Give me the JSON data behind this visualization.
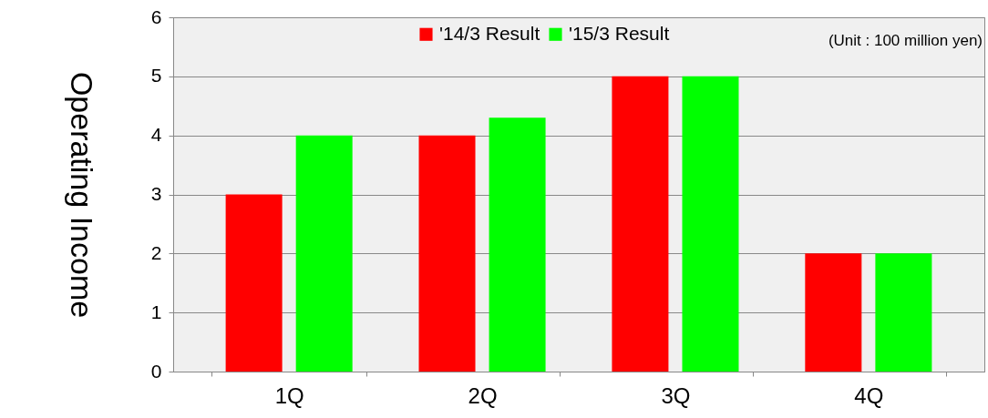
{
  "chart_data": {
    "type": "bar",
    "ylabel": "Operating Income",
    "categories": [
      "1Q",
      "2Q",
      "3Q",
      "4Q"
    ],
    "series": [
      {
        "name": "'14/3 Result",
        "color": "#ff0000",
        "values": [
          3,
          4,
          5,
          2
        ]
      },
      {
        "name": "'15/3 Result",
        "color": "#00ff00",
        "values": [
          4,
          4.3,
          5,
          2
        ]
      }
    ],
    "ylim": [
      0,
      6
    ],
    "yticks": [
      0,
      1,
      2,
      3,
      4,
      5,
      6
    ],
    "grid": "y",
    "legend": "top",
    "annotations": [
      "(Unit : 100 million yen)"
    ]
  }
}
